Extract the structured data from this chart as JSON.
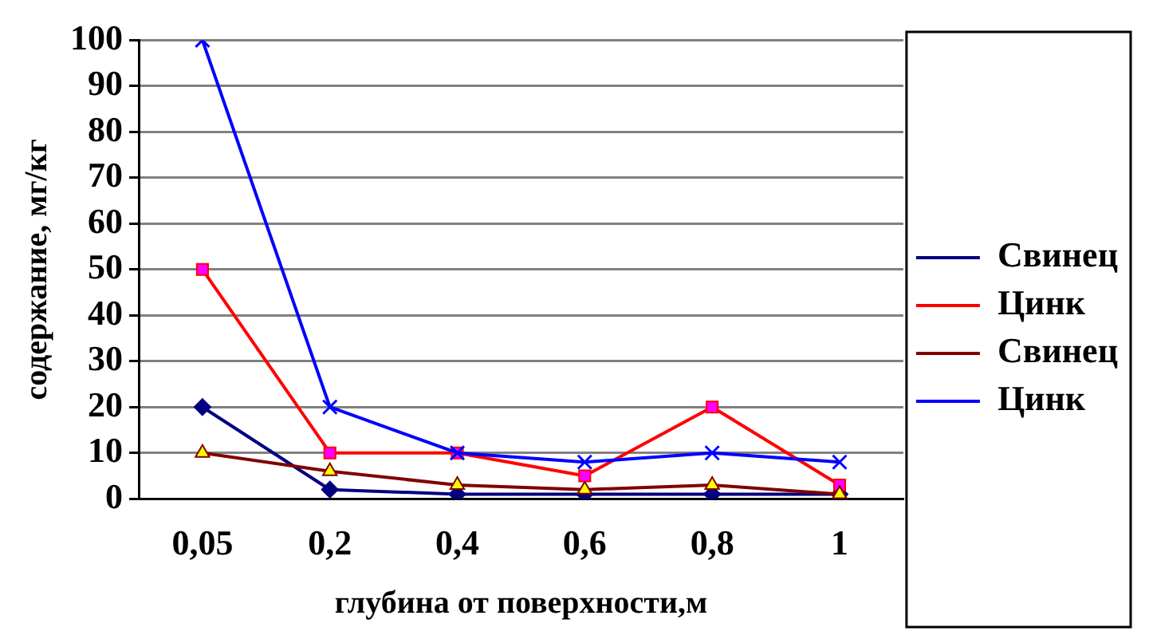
{
  "chart_data": {
    "type": "line",
    "xlabel": "глубина от поверхности,м",
    "ylabel": "содержание, мг/кг",
    "categories": [
      "0,05",
      "0,2",
      "0,4",
      "0,6",
      "0,8",
      "1"
    ],
    "series": [
      {
        "name": "Свинец",
        "color": "#000080",
        "marker": "diamond",
        "values": [
          20,
          2,
          1,
          1,
          1,
          1
        ]
      },
      {
        "name": "Цинк",
        "color": "#ff0000",
        "marker": "square",
        "values": [
          50,
          10,
          10,
          5,
          20,
          3
        ]
      },
      {
        "name": "Свинец",
        "color": "#800000",
        "marker": "triangle",
        "values": [
          10,
          6,
          3,
          2,
          3,
          1
        ]
      },
      {
        "name": "Цинк",
        "color": "#0000ff",
        "marker": "cross",
        "values": [
          100,
          20,
          10,
          8,
          10,
          8
        ]
      }
    ],
    "ylim": [
      0,
      100
    ],
    "yticks": [
      0,
      10,
      20,
      30,
      40,
      50,
      60,
      70,
      80,
      90,
      100
    ],
    "grid": "y",
    "legend": "right"
  }
}
